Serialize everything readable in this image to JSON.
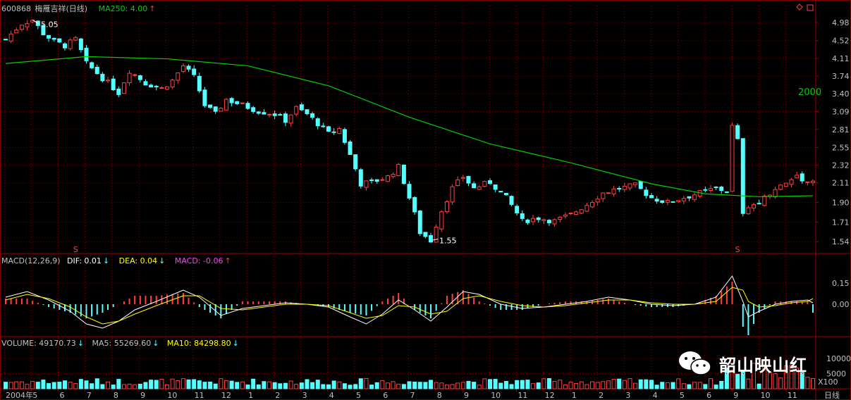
{
  "header": {
    "code": "600868",
    "name": "梅雁吉祥(日线)",
    "ma_label": "MA250: 4.00",
    "ma_arrow": "↑"
  },
  "macd_header": {
    "title": "MACD(12,26,9)",
    "dif": "DIF: 0.01",
    "dif_arrow": "↓",
    "dea": "DEA: 0.04",
    "dea_arrow": "↓",
    "macd": "MACD: -0.06",
    "macd_arrow": "↑"
  },
  "vol_header": {
    "volume": "VOLUME: 49170.73",
    "volume_arrow": "↓",
    "ma5": "MA5: 55269.60",
    "ma5_arrow": "↓",
    "ma10": "MA10: 84298.80",
    "ma10_arrow": "↓"
  },
  "annotations": {
    "high": "5.05",
    "low": "1.55",
    "year_mark": "2000"
  },
  "watermark": "韶山映山红",
  "period_label": "日线",
  "volume_unit": "X100",
  "colors": {
    "up": "#ff4040",
    "down": "#54ffff",
    "ma250": "#00d000",
    "grid": "#7a0000",
    "axis_text": "#c0c0c0",
    "dif": "#ffffff",
    "dea": "#ffff00",
    "macd_label": "#ff40ff"
  },
  "chart_data": [
    {
      "type": "candlestick",
      "title": "600868 梅雁吉祥(日线)",
      "y_ticks": [
        "4.98",
        "4.52",
        "4.11",
        "3.74",
        "3.40",
        "3.09",
        "2.81",
        "2.55",
        "2.32",
        "2.11",
        "1.90",
        "1.71",
        "1.54"
      ],
      "scale": "log",
      "ylim": [
        1.49,
        5.25
      ],
      "x_ticks": [
        "2004年",
        "5",
        "6",
        "7",
        "8",
        "9",
        "10",
        "11",
        "12",
        "1",
        "2",
        "3",
        "4",
        "5",
        "6",
        "7",
        "8",
        "9",
        "10",
        "11",
        "12",
        "1",
        "2",
        "3",
        "4",
        "5",
        "6",
        "9",
        "10",
        "11"
      ],
      "price_path": [
        [
          0,
          4.55
        ],
        [
          3,
          4.95
        ],
        [
          5,
          5.05
        ],
        [
          7,
          4.7
        ],
        [
          9,
          4.5
        ],
        [
          11,
          4.4
        ],
        [
          13,
          4.55
        ],
        [
          15,
          4.0
        ],
        [
          18,
          3.7
        ],
        [
          21,
          3.42
        ],
        [
          23,
          3.85
        ],
        [
          26,
          3.6
        ],
        [
          29,
          3.5
        ],
        [
          31,
          3.65
        ],
        [
          33,
          3.95
        ],
        [
          35,
          3.72
        ],
        [
          37,
          3.2
        ],
        [
          39,
          3.05
        ],
        [
          41,
          3.3
        ],
        [
          44,
          3.2
        ],
        [
          47,
          3.1
        ],
        [
          50,
          3.05
        ],
        [
          52,
          2.95
        ],
        [
          54,
          3.15
        ],
        [
          56,
          3.05
        ],
        [
          58,
          2.9
        ],
        [
          60,
          2.75
        ],
        [
          62,
          2.82
        ],
        [
          64,
          2.45
        ],
        [
          66,
          2.1
        ],
        [
          68,
          2.12
        ],
        [
          71,
          2.18
        ],
        [
          73,
          2.3
        ],
        [
          75,
          1.95
        ],
        [
          77,
          1.62
        ],
        [
          79,
          1.55
        ],
        [
          81,
          1.82
        ],
        [
          83,
          2.05
        ],
        [
          85,
          2.18
        ],
        [
          87,
          2.05
        ],
        [
          90,
          2.12
        ],
        [
          93,
          1.95
        ],
        [
          96,
          1.72
        ],
        [
          99,
          1.75
        ],
        [
          102,
          1.72
        ],
        [
          105,
          1.78
        ],
        [
          108,
          1.88
        ],
        [
          111,
          2.0
        ],
        [
          114,
          2.05
        ],
        [
          117,
          2.08
        ],
        [
          120,
          1.95
        ],
        [
          123,
          1.9
        ],
        [
          126,
          1.95
        ],
        [
          129,
          2.0
        ],
        [
          132,
          2.05
        ],
        [
          134,
          2.02
        ],
        [
          135,
          2.85
        ],
        [
          136,
          2.65
        ],
        [
          137,
          1.78
        ],
        [
          139,
          1.88
        ],
        [
          141,
          1.95
        ],
        [
          143,
          2.05
        ],
        [
          145,
          2.1
        ],
        [
          147,
          2.2
        ],
        [
          149,
          2.12
        ],
        [
          150,
          2.15
        ]
      ],
      "candles_total": 151,
      "ma250": [
        [
          0,
          4.0
        ],
        [
          15,
          4.15
        ],
        [
          30,
          4.1
        ],
        [
          45,
          3.95
        ],
        [
          60,
          3.55
        ],
        [
          75,
          3.0
        ],
        [
          90,
          2.6
        ],
        [
          105,
          2.35
        ],
        [
          120,
          2.1
        ],
        [
          130,
          1.99
        ],
        [
          140,
          1.96
        ],
        [
          150,
          1.97
        ]
      ],
      "markers": [
        {
          "label": "S",
          "index": 13
        },
        {
          "label": "S",
          "index": 136
        }
      ],
      "annotations": [
        {
          "text": "5.05",
          "index": 5,
          "value": 5.05
        },
        {
          "text": "1.55",
          "index": 79,
          "value": 1.55
        }
      ]
    },
    {
      "type": "line",
      "title": "MACD(12,26,9)",
      "y_ticks": [
        "0.15",
        "0.00"
      ],
      "ylim": [
        -0.22,
        0.26
      ],
      "series": [
        {
          "name": "DIF",
          "points": [
            [
              0,
              0.05
            ],
            [
              4,
              0.09
            ],
            [
              8,
              0.03
            ],
            [
              12,
              -0.05
            ],
            [
              15,
              -0.14
            ],
            [
              18,
              -0.17
            ],
            [
              21,
              -0.12
            ],
            [
              24,
              -0.04
            ],
            [
              28,
              0.02
            ],
            [
              33,
              0.1
            ],
            [
              36,
              0.05
            ],
            [
              40,
              -0.08
            ],
            [
              44,
              -0.03
            ],
            [
              48,
              -0.01
            ],
            [
              52,
              0.01
            ],
            [
              56,
              0.0
            ],
            [
              60,
              -0.02
            ],
            [
              64,
              -0.09
            ],
            [
              67,
              -0.14
            ],
            [
              70,
              -0.07
            ],
            [
              73,
              0.03
            ],
            [
              76,
              -0.04
            ],
            [
              79,
              -0.12
            ],
            [
              82,
              -0.02
            ],
            [
              85,
              0.09
            ],
            [
              88,
              0.07
            ],
            [
              92,
              0.0
            ],
            [
              96,
              -0.03
            ],
            [
              100,
              -0.02
            ],
            [
              104,
              0.0
            ],
            [
              108,
              0.02
            ],
            [
              112,
              0.05
            ],
            [
              116,
              0.03
            ],
            [
              120,
              0.0
            ],
            [
              124,
              -0.01
            ],
            [
              128,
              0.0
            ],
            [
              132,
              0.05
            ],
            [
              135,
              0.2
            ],
            [
              137,
              0.02
            ],
            [
              138,
              -0.09
            ],
            [
              140,
              -0.05
            ],
            [
              143,
              0.0
            ],
            [
              146,
              0.02
            ],
            [
              149,
              0.03
            ],
            [
              150,
              0.01
            ]
          ]
        },
        {
          "name": "DEA",
          "points": [
            [
              0,
              0.03
            ],
            [
              4,
              0.07
            ],
            [
              8,
              0.04
            ],
            [
              12,
              -0.02
            ],
            [
              15,
              -0.09
            ],
            [
              18,
              -0.14
            ],
            [
              21,
              -0.12
            ],
            [
              24,
              -0.07
            ],
            [
              28,
              -0.01
            ],
            [
              33,
              0.06
            ],
            [
              36,
              0.06
            ],
            [
              40,
              -0.03
            ],
            [
              44,
              -0.04
            ],
            [
              48,
              -0.02
            ],
            [
              52,
              0.0
            ],
            [
              56,
              0.0
            ],
            [
              60,
              -0.01
            ],
            [
              64,
              -0.06
            ],
            [
              67,
              -0.1
            ],
            [
              70,
              -0.08
            ],
            [
              73,
              -0.01
            ],
            [
              76,
              -0.02
            ],
            [
              79,
              -0.07
            ],
            [
              82,
              -0.05
            ],
            [
              85,
              0.04
            ],
            [
              88,
              0.06
            ],
            [
              92,
              0.02
            ],
            [
              96,
              -0.01
            ],
            [
              100,
              -0.02
            ],
            [
              104,
              -0.01
            ],
            [
              108,
              0.01
            ],
            [
              112,
              0.03
            ],
            [
              116,
              0.03
            ],
            [
              120,
              0.01
            ],
            [
              124,
              0.0
            ],
            [
              128,
              0.0
            ],
            [
              132,
              0.02
            ],
            [
              135,
              0.12
            ],
            [
              137,
              0.1
            ],
            [
              138,
              0.02
            ],
            [
              140,
              -0.02
            ],
            [
              143,
              -0.01
            ],
            [
              146,
              0.01
            ],
            [
              149,
              0.02
            ],
            [
              150,
              0.04
            ]
          ]
        }
      ]
    },
    {
      "type": "bar",
      "title": "VOLUME",
      "y_ticks": [
        "10000",
        "5000"
      ],
      "unit": "X100",
      "ylim": [
        0,
        13000
      ]
    }
  ]
}
